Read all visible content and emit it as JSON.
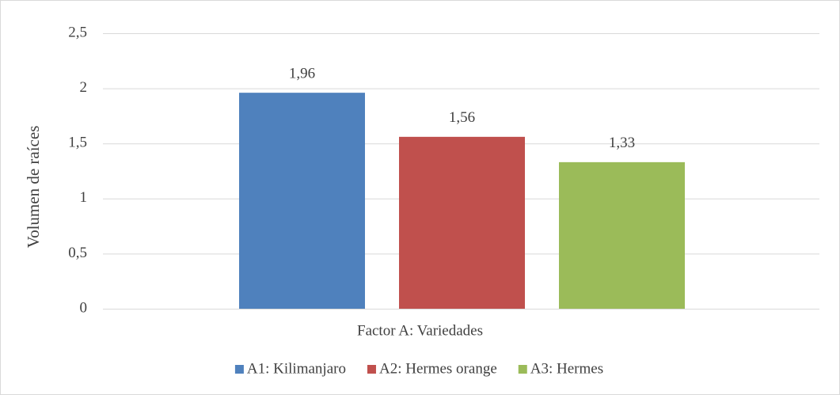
{
  "chart_data": {
    "type": "bar",
    "y_label": "Volumen de raíces",
    "categories": [
      "Factor A: Variedades"
    ],
    "series": [
      {
        "name": "A1: Kilimanjaro",
        "color": "#4f81bd",
        "values": [
          1.96
        ],
        "value_labels": [
          "1,96"
        ]
      },
      {
        "name": "A2: Hermes orange",
        "color": "#c0504d",
        "values": [
          1.56
        ],
        "value_labels": [
          "1,56"
        ]
      },
      {
        "name": "A3: Hermes",
        "color": "#9bbb59",
        "values": [
          1.33
        ],
        "value_labels": [
          "1,33"
        ]
      }
    ],
    "ylim": [
      0,
      2.5
    ],
    "yticks": [
      0,
      {
        "value": 0.5,
        "label": "0,5"
      },
      1,
      {
        "value": 1.5,
        "label": "1,5"
      },
      2,
      {
        "value": 2.5,
        "label": "2,5"
      }
    ],
    "grid": true,
    "legend": "bottom"
  }
}
